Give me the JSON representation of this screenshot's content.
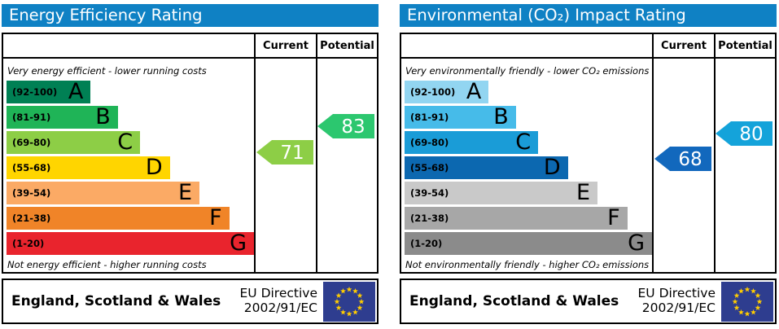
{
  "colors": {
    "title_bar_bg": "#0f81c4",
    "title_text": "#ffffff",
    "border": "#000000",
    "eu_flag_bg": "#2e3d8f",
    "eu_flag_stars": "#ffcc00"
  },
  "panels": [
    {
      "title": "Energy Efficiency Rating",
      "header": {
        "current": "Current",
        "potential": "Potential"
      },
      "top_note": "Very energy efficient - lower running costs",
      "bottom_note": "Not energy efficient - higher running costs",
      "bands": [
        {
          "label": "(92-100)",
          "letter": "A",
          "min": 92,
          "max": 100,
          "color": "#008054",
          "width_pct": 34
        },
        {
          "label": "(81-91)",
          "letter": "B",
          "min": 81,
          "max": 91,
          "color": "#1fb457",
          "width_pct": 45
        },
        {
          "label": "(69-80)",
          "letter": "C",
          "min": 69,
          "max": 80,
          "color": "#8dce46",
          "width_pct": 54
        },
        {
          "label": "(55-68)",
          "letter": "D",
          "min": 55,
          "max": 68,
          "color": "#ffd500",
          "width_pct": 66
        },
        {
          "label": "(39-54)",
          "letter": "E",
          "min": 39,
          "max": 54,
          "color": "#fbaa65",
          "width_pct": 78
        },
        {
          "label": "(21-38)",
          "letter": "F",
          "min": 21,
          "max": 38,
          "color": "#f08428",
          "width_pct": 90
        },
        {
          "label": "(1-20)",
          "letter": "G",
          "min": 1,
          "max": 20,
          "color": "#e9242d",
          "width_pct": 100
        }
      ],
      "current": {
        "value": 71,
        "color": "#8dce46"
      },
      "potential": {
        "value": 83,
        "color": "#2cc76f"
      },
      "footer": {
        "region": "England, Scotland & Wales",
        "directive_line1": "EU Directive",
        "directive_line2": "2002/91/EC"
      }
    },
    {
      "title": "Environmental (CO₂) Impact Rating",
      "header": {
        "current": "Current",
        "potential": "Potential"
      },
      "top_note": "Very environmentally friendly - lower CO₂ emissions",
      "bottom_note": "Not environmentally friendly - higher CO₂ emissions",
      "bands": [
        {
          "label": "(92-100)",
          "letter": "A",
          "min": 92,
          "max": 100,
          "color": "#92d5f1",
          "width_pct": 34
        },
        {
          "label": "(81-91)",
          "letter": "B",
          "min": 81,
          "max": 91,
          "color": "#46bbe9",
          "width_pct": 45
        },
        {
          "label": "(69-80)",
          "letter": "C",
          "min": 69,
          "max": 80,
          "color": "#1a9cd7",
          "width_pct": 54
        },
        {
          "label": "(55-68)",
          "letter": "D",
          "min": 55,
          "max": 68,
          "color": "#0c68b0",
          "width_pct": 66
        },
        {
          "label": "(39-54)",
          "letter": "E",
          "min": 39,
          "max": 54,
          "color": "#c9c9c9",
          "width_pct": 78
        },
        {
          "label": "(21-38)",
          "letter": "F",
          "min": 21,
          "max": 38,
          "color": "#a7a7a7",
          "width_pct": 90
        },
        {
          "label": "(1-20)",
          "letter": "G",
          "min": 1,
          "max": 20,
          "color": "#8b8b8b",
          "width_pct": 100
        }
      ],
      "current": {
        "value": 68,
        "color": "#1268bd"
      },
      "potential": {
        "value": 80,
        "color": "#14a3da"
      },
      "footer": {
        "region": "England, Scotland & Wales",
        "directive_line1": "EU Directive",
        "directive_line2": "2002/91/EC"
      }
    }
  ],
  "chart_data": [
    {
      "type": "bar",
      "title": "Energy Efficiency Rating",
      "categories": [
        "A (92-100)",
        "B (81-91)",
        "C (69-80)",
        "D (55-68)",
        "E (39-54)",
        "F (21-38)",
        "G (1-20)"
      ],
      "band_bar_width_pct": [
        34,
        45,
        54,
        66,
        78,
        90,
        100
      ],
      "series": [
        {
          "name": "Current",
          "values": [
            71
          ],
          "band": "C"
        },
        {
          "name": "Potential",
          "values": [
            83
          ],
          "band": "B"
        }
      ],
      "annotations": [
        "Very energy efficient - lower running costs",
        "Not energy efficient - higher running costs",
        "England, Scotland & Wales",
        "EU Directive 2002/91/EC"
      ],
      "value_range": [
        1,
        100
      ],
      "legend_position": "columns-right",
      "grid": false
    },
    {
      "type": "bar",
      "title": "Environmental (CO₂) Impact Rating",
      "categories": [
        "A (92-100)",
        "B (81-91)",
        "C (69-80)",
        "D (55-68)",
        "E (39-54)",
        "F (21-38)",
        "G (1-20)"
      ],
      "band_bar_width_pct": [
        34,
        45,
        54,
        66,
        78,
        90,
        100
      ],
      "series": [
        {
          "name": "Current",
          "values": [
            68
          ],
          "band": "D"
        },
        {
          "name": "Potential",
          "values": [
            80
          ],
          "band": "C"
        }
      ],
      "annotations": [
        "Very environmentally friendly - lower CO₂ emissions",
        "Not environmentally friendly - higher CO₂ emissions",
        "England, Scotland & Wales",
        "EU Directive 2002/91/EC"
      ],
      "value_range": [
        1,
        100
      ],
      "legend_position": "columns-right",
      "grid": false
    }
  ]
}
